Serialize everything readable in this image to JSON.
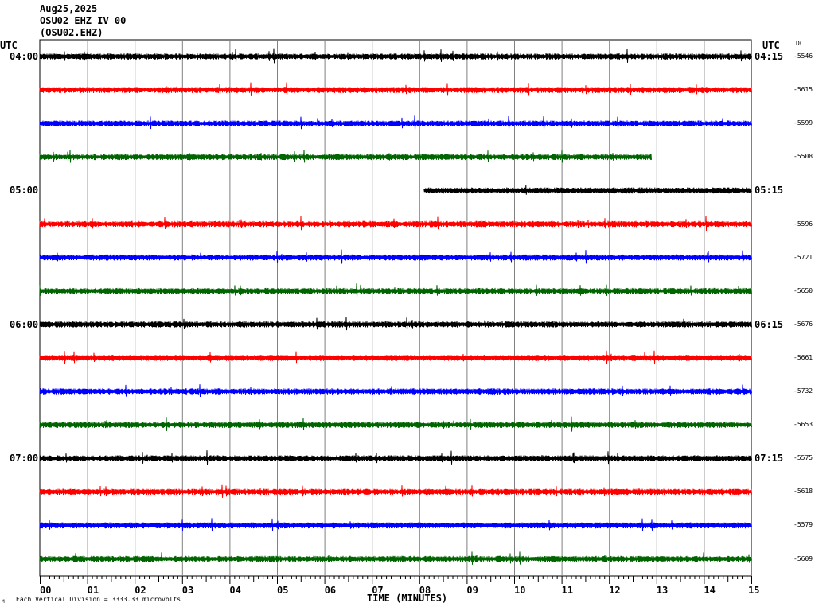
{
  "header": {
    "date": "Aug25,2025",
    "station": "OSU02 EHZ IV 00",
    "channel_code": "(OSU02.EHZ)"
  },
  "utc_left_label": "UTC",
  "utc_right_label": "UTC",
  "dc_label": "DC",
  "footer": {
    "scale_note": "Each Vertical Division = 3333.33 microvolts",
    "corner_mark": "M"
  },
  "chart_data": {
    "type": "line",
    "title": "",
    "xlabel": "TIME (MINUTES)",
    "ylabel": "",
    "x_ticks": [
      "00",
      "01",
      "02",
      "03",
      "04",
      "05",
      "06",
      "07",
      "08",
      "09",
      "10",
      "11",
      "12",
      "13",
      "14",
      "15"
    ],
    "xlim": [
      0,
      15
    ],
    "grid": true,
    "left_hour_labels": [
      "04:00",
      "05:00",
      "06:00",
      "07:00"
    ],
    "right_hour_labels": [
      "04:15",
      "05:15",
      "06:15",
      "07:15"
    ],
    "trace_colors": [
      "#000000",
      "#ff0000",
      "#0000ff",
      "#006400"
    ],
    "traces": [
      {
        "start_min": 0,
        "end_min": 15,
        "color": "#000000",
        "dc": "-5546"
      },
      {
        "start_min": 0,
        "end_min": 15,
        "color": "#ff0000",
        "dc": "-5615"
      },
      {
        "start_min": 0,
        "end_min": 15,
        "color": "#0000ff",
        "dc": "-5599"
      },
      {
        "start_min": 0,
        "end_min": 12.9,
        "color": "#006400",
        "dc": "-5508"
      },
      {
        "start_min": 8.1,
        "end_min": 15,
        "color": "#000000",
        "dc": ""
      },
      {
        "start_min": 0,
        "end_min": 15,
        "color": "#ff0000",
        "dc": "-5596"
      },
      {
        "start_min": 0,
        "end_min": 15,
        "color": "#0000ff",
        "dc": "-5721"
      },
      {
        "start_min": 0,
        "end_min": 15,
        "color": "#006400",
        "dc": "-5650"
      },
      {
        "start_min": 0,
        "end_min": 15,
        "color": "#000000",
        "dc": "-5676"
      },
      {
        "start_min": 0,
        "end_min": 15,
        "color": "#ff0000",
        "dc": "-5661"
      },
      {
        "start_min": 0,
        "end_min": 15,
        "color": "#0000ff",
        "dc": "-5732"
      },
      {
        "start_min": 0,
        "end_min": 15,
        "color": "#006400",
        "dc": "-5653"
      },
      {
        "start_min": 0,
        "end_min": 15,
        "color": "#000000",
        "dc": "-5575"
      },
      {
        "start_min": 0,
        "end_min": 15,
        "color": "#ff0000",
        "dc": "-5618"
      },
      {
        "start_min": 0,
        "end_min": 15,
        "color": "#0000ff",
        "dc": "-5579"
      },
      {
        "start_min": 0,
        "end_min": 15,
        "color": "#006400",
        "dc": "-5609"
      }
    ]
  }
}
